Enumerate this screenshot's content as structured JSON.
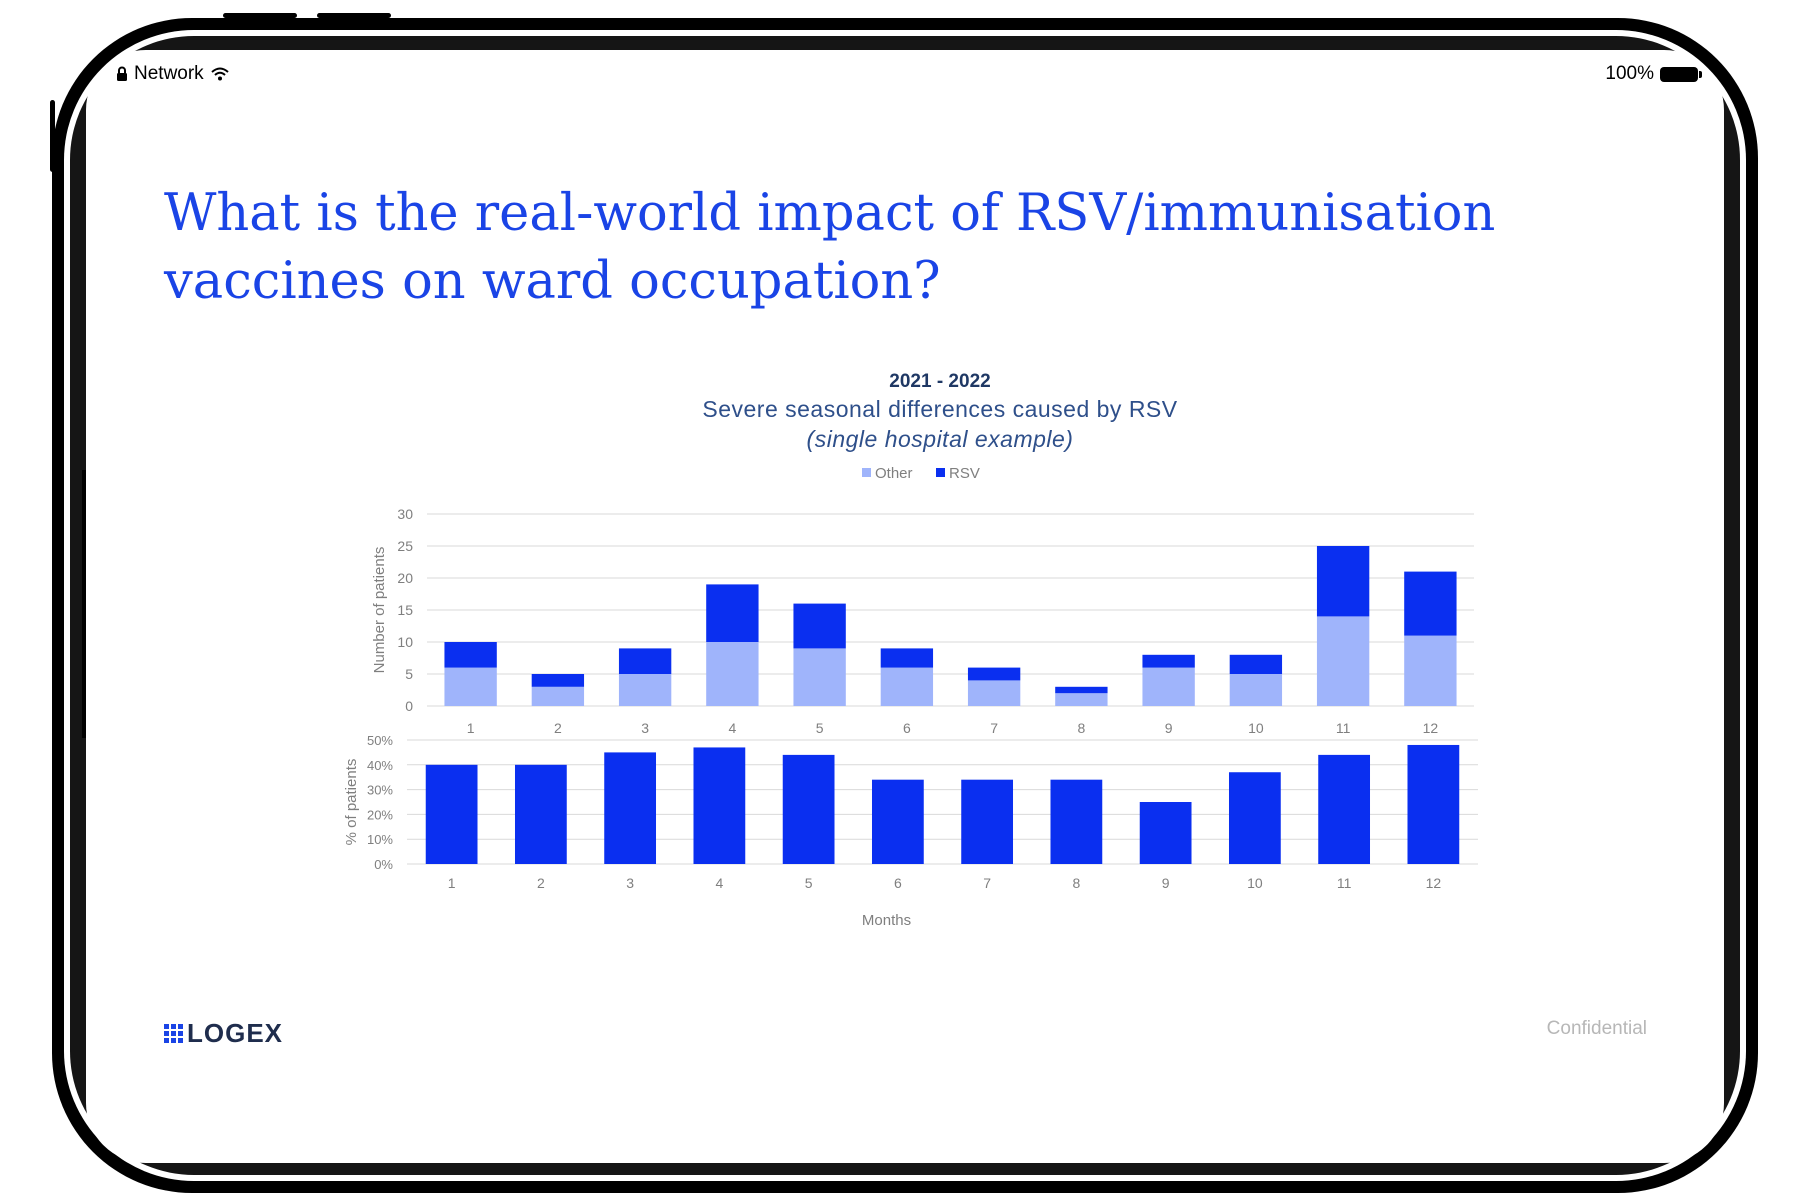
{
  "status_bar": {
    "network_label": "Network",
    "battery_label": "100%"
  },
  "slide": {
    "title": "What is the real-world impact of RSV/immunisation vaccines on ward occupation?",
    "footer_confidential": "Confidential",
    "logo_text": "LOGEX"
  },
  "chart_header": {
    "year": "2021 - 2022",
    "subtitle": "Severe seasonal differences caused by RSV",
    "note": "(single hospital example)"
  },
  "colors": {
    "rsv": "#0a2ff0",
    "other": "#9fb4fb",
    "title": "#1a44e6",
    "grid": "#d9d9d9",
    "axis_text": "#7f7f7f"
  },
  "chart_data": [
    {
      "type": "bar",
      "stacked": true,
      "categories": [
        "1",
        "2",
        "3",
        "4",
        "5",
        "6",
        "7",
        "8",
        "9",
        "10",
        "11",
        "12"
      ],
      "series": [
        {
          "name": "Other",
          "values": [
            6,
            3,
            5,
            10,
            9,
            6,
            4,
            2,
            6,
            5,
            14,
            11
          ]
        },
        {
          "name": "RSV",
          "values": [
            4,
            2,
            4,
            9,
            7,
            3,
            2,
            1,
            2,
            3,
            11,
            10
          ]
        }
      ],
      "ylabel": "Number of patients",
      "ylim": [
        0,
        30
      ],
      "yticks": [
        0,
        5,
        10,
        15,
        20,
        25,
        30
      ],
      "legend": "top-center",
      "grid": true
    },
    {
      "type": "bar",
      "categories": [
        "1",
        "2",
        "3",
        "4",
        "5",
        "6",
        "7",
        "8",
        "9",
        "10",
        "11",
        "12"
      ],
      "values": [
        40,
        40,
        45,
        47,
        44,
        34,
        34,
        34,
        25,
        37,
        44,
        48
      ],
      "ylabel": "% of patients",
      "xlabel": "Months",
      "ylim": [
        0,
        50
      ],
      "yticks": [
        "0%",
        "10%",
        "20%",
        "30%",
        "40%",
        "50%"
      ],
      "grid": true
    }
  ]
}
